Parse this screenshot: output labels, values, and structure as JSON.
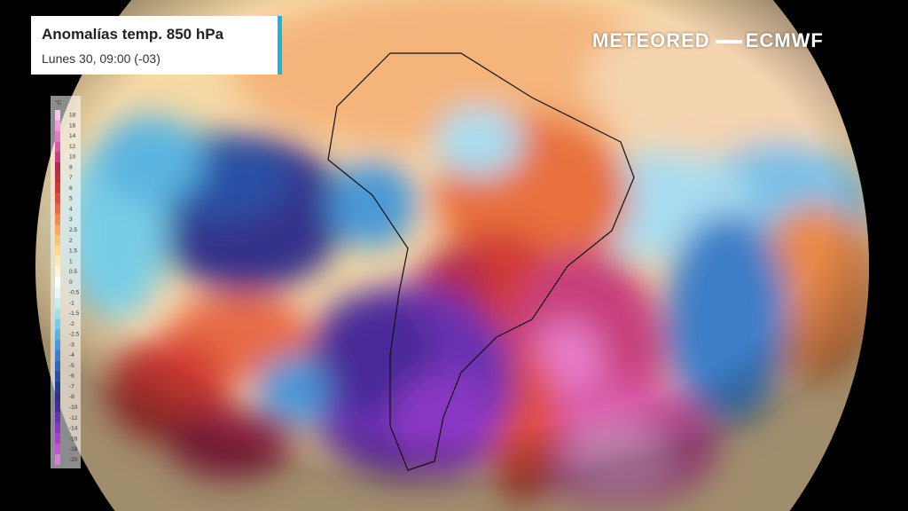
{
  "header": {
    "title": "Anomalías temp. 850 hPa",
    "subtitle": "Lunes 30, 09:00 (-03)"
  },
  "branding": {
    "left": "METEORED",
    "right": "ECMWF"
  },
  "legend": {
    "unit": "°C",
    "labels": [
      "18",
      "16",
      "14",
      "12",
      "10",
      "8",
      "7",
      "6",
      "5",
      "4",
      "3",
      "2.5",
      "2",
      "1.5",
      "1",
      "0.5",
      "0",
      "-0.5",
      "-1",
      "-1.5",
      "-2",
      "-2.5",
      "-3",
      "-4",
      "-5",
      "-6",
      "-7",
      "-8",
      "-10",
      "-12",
      "-14",
      "-16",
      "-18",
      "-20"
    ],
    "colors": [
      "#f7c6e6",
      "#f0a0d8",
      "#e67cc8",
      "#d85aa8",
      "#c8407c",
      "#b02a50",
      "#c0303c",
      "#d03a34",
      "#e04e3a",
      "#e86a44",
      "#f08a52",
      "#f5a862",
      "#f8c476",
      "#fbd98e",
      "#fde8b0",
      "#fff4d8",
      "#ffffff",
      "#e8f8fa",
      "#c8eef4",
      "#9ee0ec",
      "#78cde6",
      "#5ab4e0",
      "#4a98d6",
      "#3c7ec8",
      "#3266b8",
      "#2a50a4",
      "#283c90",
      "#34308a",
      "#4a2c98",
      "#6a30b0",
      "#8a38c4",
      "#a840cc",
      "#c058d0",
      "#d880dc"
    ]
  }
}
